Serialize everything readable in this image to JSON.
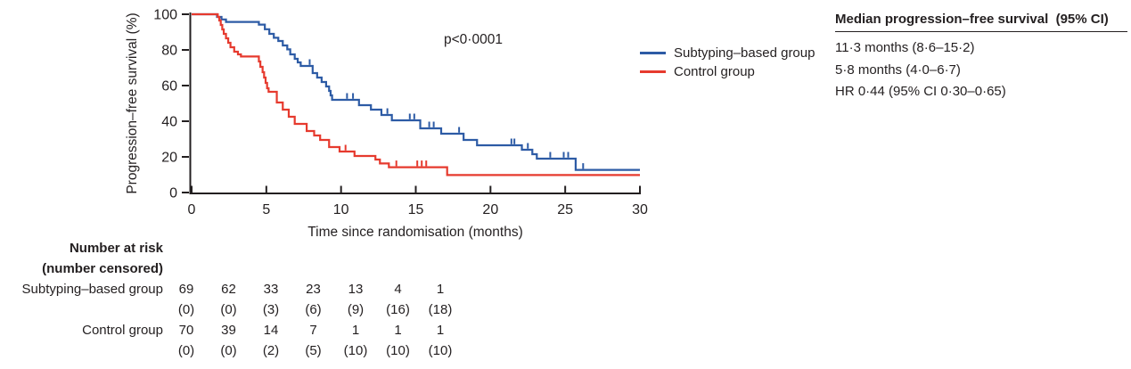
{
  "figure": {
    "p_value": "p<0·0001",
    "legend": {
      "items": [
        "Subtyping–based group",
        "Control group"
      ]
    },
    "stats": {
      "header": "Median progression–free survival  (95% CI)",
      "rows": [
        "11·3 months (8·6–15·2)",
        "5·8 months (4·0–6·7)",
        "HR 0·44 (95% CI 0·30–0·65)"
      ]
    },
    "risk_table": {
      "title_line1": "Number at risk",
      "title_line2": "(number censored)",
      "rows": [
        {
          "label": "Subtyping–based group",
          "at_risk": [
            "69",
            "62",
            "33",
            "23",
            "13",
            "4",
            "1"
          ],
          "censored": [
            "(0)",
            "(0)",
            "(3)",
            "(6)",
            "(9)",
            "(16)",
            "(18)"
          ]
        },
        {
          "label": "Control group",
          "at_risk": [
            "70",
            "39",
            "14",
            "7",
            "1",
            "1",
            "1"
          ],
          "censored": [
            "(0)",
            "(0)",
            "(2)",
            "(5)",
            "(10)",
            "(10)",
            "(10)"
          ]
        }
      ]
    }
  },
  "chart_data": {
    "type": "line",
    "subtype": "kaplan-meier-step",
    "title": "",
    "xlabel": "Time since randomisation (months)",
    "ylabel": "Progression–free survival (%)",
    "annotation": "p<0·0001",
    "xlim": [
      0,
      30
    ],
    "ylim": [
      0,
      100
    ],
    "xticks": [
      0,
      5,
      10,
      15,
      20,
      25,
      30
    ],
    "yticks": [
      0,
      20,
      40,
      60,
      80,
      100
    ],
    "grid": false,
    "legend_position": "right",
    "axis_color": "#231f20",
    "series": [
      {
        "name": "Subtyping–based group",
        "color": "#2d5ba5",
        "median_months": 11.3,
        "median_ci": "8.6–15.2",
        "steps": [
          [
            0,
            100
          ],
          [
            1.7,
            98.5
          ],
          [
            2.0,
            97.1
          ],
          [
            2.3,
            95.7
          ],
          [
            4.5,
            94.2
          ],
          [
            4.9,
            91.6
          ],
          [
            5.2,
            89
          ],
          [
            5.5,
            86.8
          ],
          [
            5.8,
            85
          ],
          [
            6.1,
            82.5
          ],
          [
            6.4,
            80.3
          ],
          [
            6.6,
            77.5
          ],
          [
            6.9,
            75
          ],
          [
            7.1,
            73
          ],
          [
            7.3,
            71
          ],
          [
            8.1,
            67
          ],
          [
            8.4,
            64.5
          ],
          [
            8.7,
            62
          ],
          [
            9.0,
            59.5
          ],
          [
            9.2,
            57
          ],
          [
            9.3,
            54.5
          ],
          [
            9.4,
            52
          ],
          [
            11.2,
            49
          ],
          [
            12.0,
            46.5
          ],
          [
            12.7,
            43.5
          ],
          [
            13.4,
            40.5
          ],
          [
            15.3,
            36
          ],
          [
            16.7,
            33
          ],
          [
            18.2,
            29.5
          ],
          [
            19.1,
            26.5
          ],
          [
            22.1,
            24
          ],
          [
            22.8,
            21.5
          ],
          [
            23.1,
            19
          ],
          [
            25.7,
            12.7
          ],
          [
            30,
            12.7
          ]
        ],
        "censor_ticks": [
          7.9,
          10.4,
          10.8,
          13.1,
          14.6,
          14.9,
          15.9,
          16.2,
          17.9,
          21.4,
          21.6,
          22.5,
          24.0,
          24.9,
          25.2,
          26.2
        ]
      },
      {
        "name": "Control group",
        "color": "#e63a2e",
        "median_months": 5.8,
        "median_ci": "4.0–6.7",
        "steps": [
          [
            0,
            100
          ],
          [
            1.75,
            98.5
          ],
          [
            1.85,
            96.5
          ],
          [
            1.95,
            94
          ],
          [
            2.05,
            91.5
          ],
          [
            2.15,
            89
          ],
          [
            2.3,
            86.5
          ],
          [
            2.45,
            84
          ],
          [
            2.6,
            81.5
          ],
          [
            2.85,
            79
          ],
          [
            3.1,
            77.5
          ],
          [
            3.3,
            76.3
          ],
          [
            4.5,
            73.5
          ],
          [
            4.6,
            70.5
          ],
          [
            4.75,
            67.5
          ],
          [
            4.85,
            64.5
          ],
          [
            4.95,
            61.5
          ],
          [
            5.05,
            58.5
          ],
          [
            5.15,
            56.5
          ],
          [
            5.7,
            50.5
          ],
          [
            6.1,
            46.5
          ],
          [
            6.5,
            42.5
          ],
          [
            6.9,
            38.5
          ],
          [
            7.7,
            34.5
          ],
          [
            8.2,
            32
          ],
          [
            8.6,
            29.5
          ],
          [
            9.2,
            25.5
          ],
          [
            9.9,
            23
          ],
          [
            10.9,
            20.5
          ],
          [
            12.3,
            18.5
          ],
          [
            12.6,
            16.3
          ],
          [
            13.2,
            14.2
          ],
          [
            17.1,
            9.8
          ],
          [
            30,
            9.8
          ]
        ],
        "censor_ticks": [
          10.3,
          13.7,
          15.1,
          15.4,
          15.7
        ]
      }
    ],
    "hazard_ratio": "HR 0·44 (95% CI 0·30–0·65)",
    "risk_table": {
      "times": [
        0,
        5,
        10,
        15,
        20,
        25,
        30
      ],
      "groups": [
        {
          "name": "Subtyping–based group",
          "at_risk": [
            69,
            62,
            33,
            23,
            13,
            4,
            1
          ],
          "censored": [
            0,
            0,
            3,
            6,
            9,
            16,
            18
          ]
        },
        {
          "name": "Control group",
          "at_risk": [
            70,
            39,
            14,
            7,
            1,
            1,
            1
          ],
          "censored": [
            0,
            0,
            2,
            5,
            10,
            10,
            10
          ]
        }
      ]
    }
  }
}
